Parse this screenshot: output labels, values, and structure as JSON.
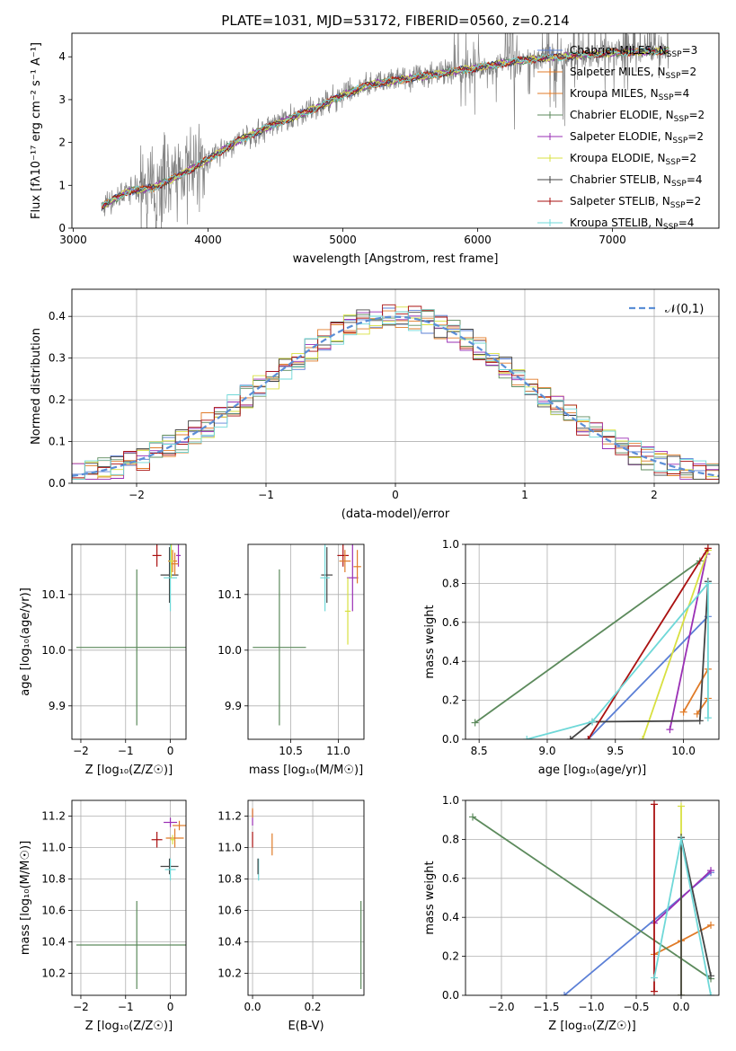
{
  "figure": {
    "title": "PLATE=1031, MJD=53172, FIBERID=0560, z=0.214"
  },
  "series_styles": [
    {
      "name": "Chabrier MILES",
      "nssp": "3",
      "color": "#5b7fd6"
    },
    {
      "name": "Salpeter MILES",
      "nssp": "2",
      "color": "#e07b28"
    },
    {
      "name": "Kroupa MILES",
      "nssp": "4",
      "color": "#e07b28"
    },
    {
      "name": "Chabrier ELODIE",
      "nssp": "2",
      "color": "#5c8a5c"
    },
    {
      "name": "Salpeter ELODIE",
      "nssp": "2",
      "color": "#9a2fb5"
    },
    {
      "name": "Kroupa ELODIE",
      "nssp": "2",
      "color": "#d8e040"
    },
    {
      "name": "Chabrier STELIB",
      "nssp": "4",
      "color": "#444444"
    },
    {
      "name": "Salpeter STELIB",
      "nssp": "2",
      "color": "#aa1111"
    },
    {
      "name": "Kroupa STELIB",
      "nssp": "4",
      "color": "#6fd8d8"
    }
  ],
  "chart_data": [
    {
      "id": "spectrum",
      "type": "line",
      "title": "PLATE=1031, MJD=53172, FIBERID=0560, z=0.214",
      "xlabel": "wavelength [Angstrom, rest frame]",
      "ylabel": "Flux [fλ10⁻¹⁷ erg cm⁻² s⁻¹ A⁻¹]",
      "xlim": [
        2990,
        7790
      ],
      "ylim": [
        0,
        4.55
      ],
      "xticks": [
        3000,
        4000,
        5000,
        6000,
        7000
      ],
      "yticks": [
        0,
        1,
        2,
        3,
        4
      ],
      "grid": false,
      "legend": "top-right",
      "continuum": {
        "x": [
          3210,
          3400,
          3600,
          3800,
          4000,
          4200,
          4400,
          4600,
          4800,
          5000,
          5200,
          5400,
          5600,
          5800,
          6000,
          6200,
          6400,
          6600,
          6800,
          7000,
          7200,
          7420
        ],
        "y": [
          0.5,
          0.85,
          0.95,
          1.25,
          1.6,
          2.0,
          2.3,
          2.55,
          2.8,
          3.1,
          3.35,
          3.45,
          3.55,
          3.65,
          3.75,
          3.85,
          3.95,
          4.0,
          4.05,
          4.1,
          4.12,
          4.15
        ]
      },
      "data_range": [
        3210,
        7420
      ]
    },
    {
      "id": "residuals",
      "type": "line",
      "xlabel": "(data-model)/error",
      "ylabel": "Normed distribution",
      "xlim": [
        -2.5,
        2.5
      ],
      "ylim": [
        0,
        0.465
      ],
      "xticks": [
        -2,
        -1,
        0,
        1,
        2
      ],
      "yticks": [
        0.0,
        0.1,
        0.2,
        0.3,
        0.4
      ],
      "grid": true,
      "legend": "top-right",
      "legend_label": "𝒩(0,1)",
      "reference_color": "#5b8ed6"
    },
    {
      "id": "age_vs_z",
      "type": "scatter",
      "xlabel": "Z [log₁₀(Z/Z☉)]",
      "ylabel": "age  [log₁₀(age/yr)]",
      "xlim": [
        -2.2,
        0.35
      ],
      "ylim": [
        9.84,
        10.19
      ],
      "xticks": [
        -2,
        -1,
        0
      ],
      "yticks": [
        9.9,
        10.0,
        10.1
      ],
      "grid": true,
      "points": [
        {
          "series": 3,
          "x": -0.75,
          "y": 10.005,
          "xerr": 1.35,
          "yerr": 0.14
        },
        {
          "series": 6,
          "x": -0.02,
          "y": 10.135,
          "xerr": 0.2,
          "yerr": 0.05
        },
        {
          "series": 8,
          "x": 0.0,
          "y": 10.13,
          "xerr": 0.15,
          "yerr": 0.06
        },
        {
          "series": 7,
          "x": -0.3,
          "y": 10.17,
          "xerr": 0.1,
          "yerr": 0.02
        },
        {
          "series": 1,
          "x": 0.05,
          "y": 10.16,
          "xerr": 0.1,
          "yerr": 0.02
        },
        {
          "series": 4,
          "x": 0.18,
          "y": 10.17,
          "xerr": 0.05,
          "yerr": 0.02
        },
        {
          "series": 5,
          "x": 0.02,
          "y": 10.16,
          "xerr": 0.05,
          "yerr": 0.03
        },
        {
          "series": 2,
          "x": 0.1,
          "y": 10.155,
          "xerr": 0.08,
          "yerr": 0.02
        }
      ]
    },
    {
      "id": "age_vs_mass",
      "type": "scatter",
      "xlabel": "mass [log₁₀(M/M☉)]",
      "ylabel": "",
      "xlim": [
        10.05,
        11.27
      ],
      "ylim": [
        9.84,
        10.19
      ],
      "xticks": [
        10.5,
        11.0
      ],
      "yticks": [
        9.9,
        10.0,
        10.1
      ],
      "grid": true,
      "points": [
        {
          "series": 3,
          "x": 10.38,
          "y": 10.005,
          "xerr": 0.28,
          "yerr": 0.14
        },
        {
          "series": 6,
          "x": 10.88,
          "y": 10.135,
          "xerr": 0.06,
          "yerr": 0.05
        },
        {
          "series": 8,
          "x": 10.86,
          "y": 10.13,
          "xerr": 0.05,
          "yerr": 0.06
        },
        {
          "series": 7,
          "x": 11.05,
          "y": 10.17,
          "xerr": 0.06,
          "yerr": 0.02
        },
        {
          "series": 1,
          "x": 11.07,
          "y": 10.16,
          "xerr": 0.06,
          "yerr": 0.02
        },
        {
          "series": 4,
          "x": 11.15,
          "y": 10.13,
          "xerr": 0.06,
          "yerr": 0.06
        },
        {
          "series": 5,
          "x": 11.1,
          "y": 10.07,
          "xerr": 0.03,
          "yerr": 0.06
        },
        {
          "series": 2,
          "x": 11.2,
          "y": 10.15,
          "xerr": 0.04,
          "yerr": 0.03
        }
      ]
    },
    {
      "id": "weight_vs_age",
      "type": "line",
      "xlabel": "age  [log₁₀(age/yr)]",
      "ylabel": "mass weight",
      "xlim": [
        8.4,
        10.26
      ],
      "ylim": [
        0,
        1.0
      ],
      "xticks": [
        8.5,
        9.0,
        9.5,
        10.0
      ],
      "yticks": [
        0.0,
        0.2,
        0.4,
        0.6,
        0.8,
        1.0
      ],
      "grid": true,
      "series": [
        {
          "style": 0,
          "x": [
            9.3,
            10.18
          ],
          "y": [
            0.0,
            0.63
          ]
        },
        {
          "style": 1,
          "x": [
            10.0,
            10.18
          ],
          "y": [
            0.14,
            0.36
          ]
        },
        {
          "style": 2,
          "x": [
            10.1,
            10.18
          ],
          "y": [
            0.13,
            0.21
          ]
        },
        {
          "style": 3,
          "x": [
            8.47,
            10.12
          ],
          "y": [
            0.085,
            0.915
          ]
        },
        {
          "style": 4,
          "x": [
            9.9,
            10.17
          ],
          "y": [
            0.05,
            0.95
          ]
        },
        {
          "style": 5,
          "x": [
            9.7,
            10.18
          ],
          "y": [
            0.0,
            0.97
          ]
        },
        {
          "style": 6,
          "x": [
            9.17,
            9.33,
            10.12,
            10.18
          ],
          "y": [
            0.0,
            0.09,
            0.095,
            0.81
          ]
        },
        {
          "style": 7,
          "x": [
            9.3,
            10.18
          ],
          "y": [
            0.0,
            0.98
          ]
        },
        {
          "style": 8,
          "x": [
            8.85,
            9.33,
            10.18,
            10.18
          ],
          "y": [
            0.0,
            0.09,
            0.8,
            0.11
          ]
        }
      ]
    },
    {
      "id": "mass_vs_z",
      "type": "scatter",
      "xlabel": "Z [log₁₀(Z/Z☉)]",
      "ylabel": "mass [log₁₀(M/M☉)]",
      "xlim": [
        -2.2,
        0.35
      ],
      "ylim": [
        10.06,
        11.3
      ],
      "xticks": [
        -2,
        -1,
        0
      ],
      "yticks": [
        10.2,
        10.4,
        10.6,
        10.8,
        11.0,
        11.2
      ],
      "grid": true,
      "points": [
        {
          "series": 3,
          "x": -0.75,
          "y": 10.38,
          "xerr": 1.35,
          "yerr": 0.28
        },
        {
          "series": 6,
          "x": -0.02,
          "y": 10.88,
          "xerr": 0.2,
          "yerr": 0.05
        },
        {
          "series": 8,
          "x": 0.0,
          "y": 10.86,
          "xerr": 0.12,
          "yerr": 0.07
        },
        {
          "series": 7,
          "x": -0.3,
          "y": 11.05,
          "xerr": 0.12,
          "yerr": 0.05
        },
        {
          "series": 1,
          "x": 0.1,
          "y": 11.06,
          "xerr": 0.2,
          "yerr": 0.06
        },
        {
          "series": 4,
          "x": 0.0,
          "y": 11.16,
          "xerr": 0.15,
          "yerr": 0.03
        },
        {
          "series": 5,
          "x": 0.05,
          "y": 11.05,
          "xerr": 0.05,
          "yerr": 0.03
        },
        {
          "series": 2,
          "x": 0.2,
          "y": 11.14,
          "xerr": 0.15,
          "yerr": 0.03
        }
      ]
    },
    {
      "id": "mass_vs_ebv",
      "type": "scatter",
      "xlabel": "E(B-V)",
      "ylabel": "",
      "xlim": [
        -0.015,
        0.37
      ],
      "ylim": [
        10.06,
        11.3
      ],
      "xticks": [
        0.0,
        0.2
      ],
      "yticks": [
        10.2,
        10.4,
        10.6,
        10.8,
        11.0,
        11.2
      ],
      "grid": true,
      "points": [
        {
          "series": 3,
          "x": 0.36,
          "y": 10.38,
          "xerr": 0.0,
          "yerr": 0.28
        },
        {
          "series": 8,
          "x": 0.02,
          "y": 10.86,
          "xerr": 0.0,
          "yerr": 0.07
        },
        {
          "series": 6,
          "x": 0.018,
          "y": 10.88,
          "xerr": 0.0,
          "yerr": 0.05
        },
        {
          "series": 1,
          "x": 0.065,
          "y": 11.02,
          "xerr": 0.0,
          "yerr": 0.07
        },
        {
          "series": 7,
          "x": 0.0,
          "y": 11.05,
          "xerr": 0.0,
          "yerr": 0.05
        },
        {
          "series": 4,
          "x": 0.0,
          "y": 11.19,
          "xerr": 0.0,
          "yerr": 0.05
        },
        {
          "series": 2,
          "x": 0.0,
          "y": 11.22,
          "xerr": 0.0,
          "yerr": 0.03
        }
      ]
    },
    {
      "id": "weight_vs_z",
      "type": "line",
      "xlabel": "Z [log₁₀(Z/Z☉)]",
      "ylabel": "mass weight",
      "xlim": [
        -2.4,
        0.42
      ],
      "ylim": [
        0,
        1.0
      ],
      "xticks": [
        -2.0,
        -1.5,
        -1.0,
        -0.5,
        0.0
      ],
      "yticks": [
        0.0,
        0.2,
        0.4,
        0.6,
        0.8,
        1.0
      ],
      "grid": true,
      "series": [
        {
          "style": 0,
          "x": [
            -1.3,
            0.33
          ],
          "y": [
            0.0,
            0.63
          ]
        },
        {
          "style": 1,
          "x": [
            -0.3,
            0.0,
            0.33
          ],
          "y": [
            0.21,
            0.28,
            0.36
          ]
        },
        {
          "style": 3,
          "x": [
            -2.32,
            0.33
          ],
          "y": [
            0.915,
            0.085
          ]
        },
        {
          "style": 4,
          "x": [
            -0.3,
            0.33
          ],
          "y": [
            0.37,
            0.64
          ]
        },
        {
          "style": 5,
          "x": [
            0.0,
            0.0
          ],
          "y": [
            0.0,
            0.97
          ]
        },
        {
          "style": 6,
          "x": [
            0.0,
            0.0,
            0.33
          ],
          "y": [
            0.0,
            0.81,
            0.1
          ]
        },
        {
          "style": 7,
          "x": [
            -0.3,
            -0.3
          ],
          "y": [
            0.02,
            0.98
          ]
        },
        {
          "style": 8,
          "x": [
            -0.3,
            0.0,
            0.33
          ],
          "y": [
            0.09,
            0.8,
            0.0
          ]
        }
      ]
    }
  ]
}
